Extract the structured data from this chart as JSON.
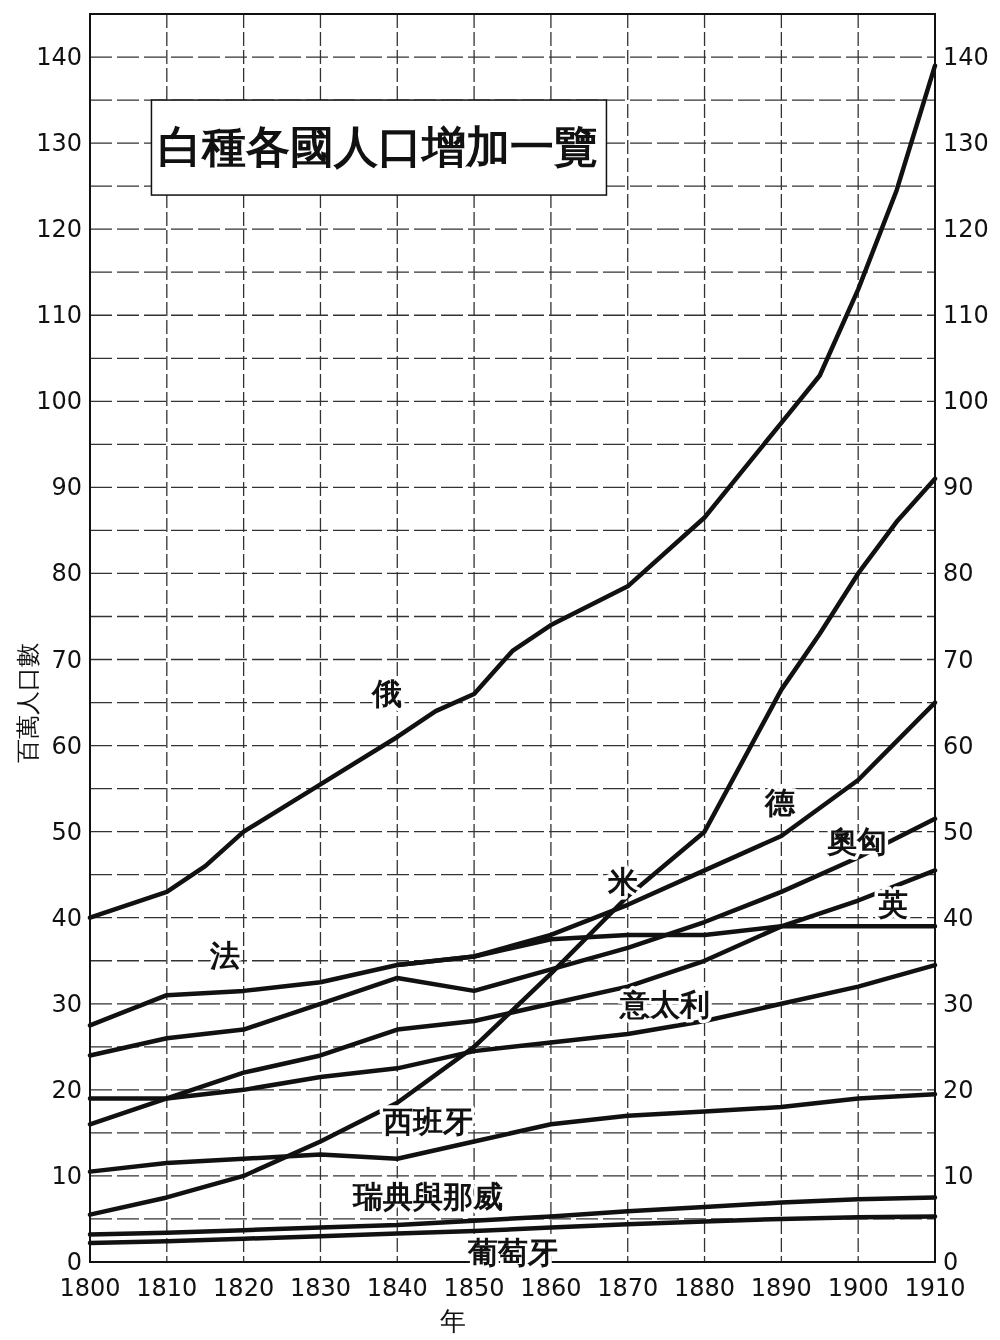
{
  "chart_data": {
    "type": "line",
    "title": "白種各國人口增加一覽",
    "xlabel": "年",
    "ylabel": "百萬人口數",
    "x": [
      1800,
      1810,
      1820,
      1830,
      1840,
      1850,
      1860,
      1870,
      1880,
      1890,
      1900,
      1910
    ],
    "xlim": [
      1800,
      1910
    ],
    "xticks": [
      1800,
      1810,
      1820,
      1830,
      1840,
      1850,
      1860,
      1870,
      1880,
      1890,
      1900,
      1910
    ],
    "ylim": [
      0,
      145
    ],
    "yticks": [
      0,
      {
        "value": 5,
        "label": null
      },
      10,
      {
        "value": 15,
        "label": null
      },
      20,
      {
        "value": 25,
        "label": null
      },
      30,
      {
        "value": 35,
        "label": null
      },
      40,
      {
        "value": 45,
        "label": null
      },
      50,
      {
        "value": 55,
        "label": null
      },
      60,
      {
        "value": 65,
        "label": null
      },
      70,
      {
        "value": 75,
        "label": null
      },
      80,
      {
        "value": 85,
        "label": null
      },
      90,
      {
        "value": 95,
        "label": null
      },
      100,
      {
        "value": 105,
        "label": null
      },
      110,
      {
        "value": 115,
        "label": null
      },
      120,
      {
        "value": 125,
        "label": null
      },
      130,
      {
        "value": 135,
        "label": null
      },
      140
    ],
    "y2lim": [
      0,
      145
    ],
    "y2ticks": [
      0,
      10,
      20,
      30,
      40,
      50,
      60,
      70,
      80,
      90,
      100,
      110,
      120,
      130,
      140
    ],
    "grid": true,
    "line_style": "solid",
    "series": [
      {
        "name": "俄",
        "color": "#111111",
        "x": [
          1800,
          1810,
          1815,
          1820,
          1830,
          1840,
          1845,
          1850,
          1855,
          1860,
          1870,
          1880,
          1890,
          1895,
          1900,
          1905,
          1910
        ],
        "values": [
          40,
          43,
          46,
          50,
          55.5,
          61,
          64,
          66,
          71,
          74,
          78.5,
          86.5,
          97.5,
          103,
          113,
          124.5,
          139
        ]
      },
      {
        "name": "米",
        "color": "#111111",
        "x": [
          1800,
          1810,
          1820,
          1830,
          1840,
          1850,
          1860,
          1870,
          1880,
          1890,
          1895,
          1900,
          1905,
          1910
        ],
        "values": [
          5.5,
          7.5,
          10,
          14,
          18.5,
          25,
          33.5,
          42.5,
          50,
          66.5,
          73,
          80,
          86,
          91
        ]
      },
      {
        "name": "德",
        "color": "#111111",
        "values": [
          null,
          null,
          null,
          null,
          34.5,
          35.5,
          38,
          41.5,
          45.5,
          49.5,
          56,
          65
        ]
      },
      {
        "name": "奧匈",
        "color": "#111111",
        "values": [
          24,
          26,
          27,
          30,
          33,
          31.5,
          34,
          36.5,
          39.5,
          43,
          47,
          51.5
        ]
      },
      {
        "name": "英",
        "color": "#111111",
        "values": [
          16,
          19,
          22,
          24,
          27,
          28,
          30,
          32,
          35,
          39,
          42,
          45.5
        ]
      },
      {
        "name": "法",
        "color": "#111111",
        "values": [
          27.5,
          31,
          31.5,
          32.5,
          34.5,
          35.5,
          37.5,
          38,
          38,
          39,
          39,
          39
        ]
      },
      {
        "name": "意太利",
        "color": "#111111",
        "values": [
          19,
          19,
          20,
          21.5,
          22.5,
          24.5,
          25.5,
          26.5,
          28,
          30,
          32,
          34.5
        ]
      },
      {
        "name": "西班牙",
        "color": "#111111",
        "values": [
          10.5,
          11.5,
          12,
          12.5,
          12,
          14,
          16,
          17,
          17.5,
          18,
          19,
          19.5
        ]
      },
      {
        "name": "瑞典與那威",
        "color": "#111111",
        "values": [
          3.2,
          3.4,
          3.7,
          4,
          4.3,
          4.8,
          5.3,
          5.9,
          6.4,
          6.9,
          7.3,
          7.5
        ]
      },
      {
        "name": "葡萄牙",
        "color": "#111111",
        "values": [
          2.2,
          2.4,
          2.7,
          3,
          3.3,
          3.6,
          4,
          4.4,
          4.7,
          5,
          5.2,
          5.3
        ]
      }
    ]
  }
}
